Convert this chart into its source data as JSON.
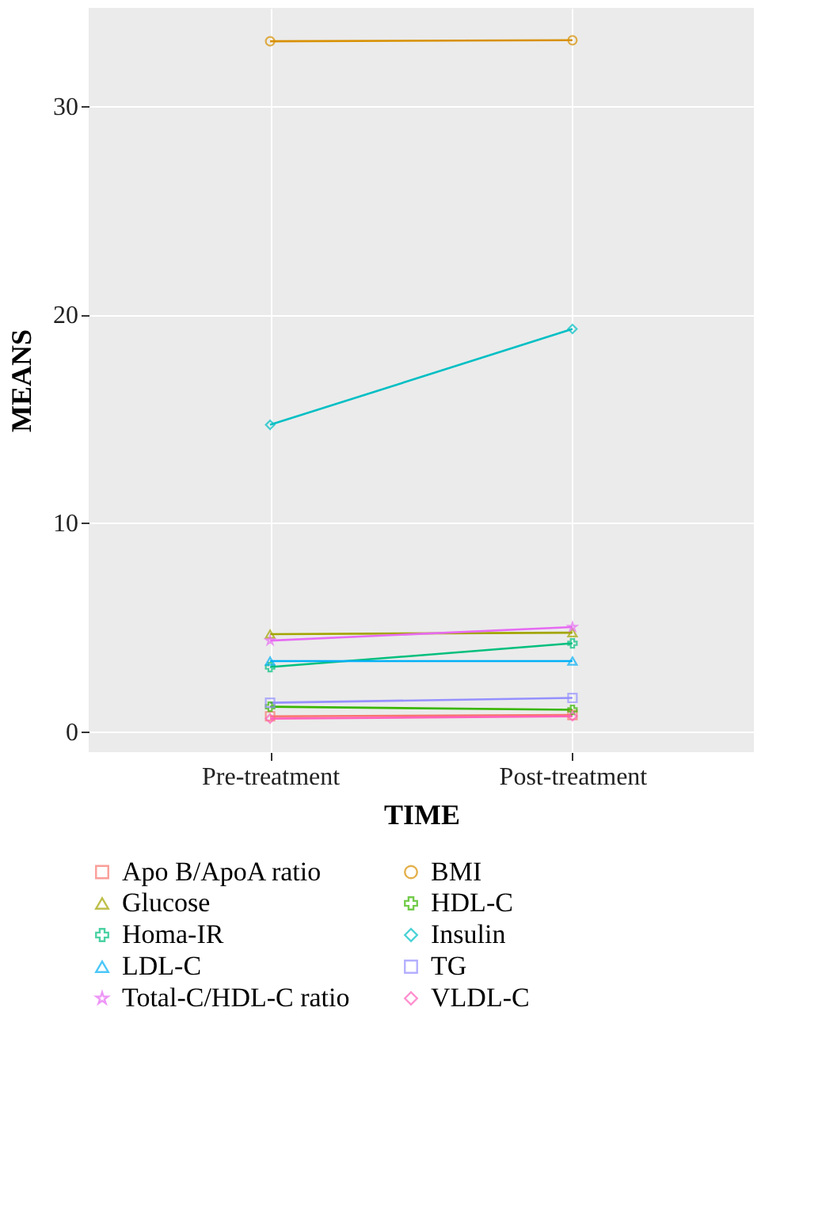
{
  "chart_data": {
    "type": "line",
    "xlabel": "TIME",
    "ylabel": "MEANS",
    "categories": [
      "Pre-treatment",
      "Post-treatment"
    ],
    "ylim": [
      -1,
      34.7
    ],
    "yticks": [
      0,
      10,
      20,
      30
    ],
    "grid": true,
    "legend": "bottom",
    "series": [
      {
        "name": "Apo B/ApoA ratio",
        "color": "#f8766d",
        "marker": "square",
        "values": [
          0.72,
          0.78
        ]
      },
      {
        "name": "BMI",
        "color": "#d89000",
        "marker": "circle",
        "values": [
          33.1,
          33.15
        ]
      },
      {
        "name": "Glucose",
        "color": "#a3a500",
        "marker": "triangle",
        "values": [
          4.66,
          4.73
        ]
      },
      {
        "name": "HDL-C",
        "color": "#39b600",
        "marker": "cross",
        "values": [
          1.18,
          1.03
        ]
      },
      {
        "name": "Homa-IR",
        "color": "#00bf7d",
        "marker": "cross",
        "values": [
          3.08,
          4.22
        ]
      },
      {
        "name": "Insulin",
        "color": "#00bfc4",
        "marker": "diamond",
        "values": [
          14.7,
          19.3
        ]
      },
      {
        "name": "LDL-C",
        "color": "#00b0f6",
        "marker": "triangle",
        "values": [
          3.37,
          3.37
        ]
      },
      {
        "name": "TG",
        "color": "#9590ff",
        "marker": "square",
        "values": [
          1.37,
          1.6
        ]
      },
      {
        "name": "Total-C/HDL-C ratio",
        "color": "#e76bf3",
        "marker": "star",
        "values": [
          4.35,
          5.0
        ]
      },
      {
        "name": "VLDL-C",
        "color": "#ff62bc",
        "marker": "diamond",
        "values": [
          0.61,
          0.72
        ]
      }
    ]
  }
}
